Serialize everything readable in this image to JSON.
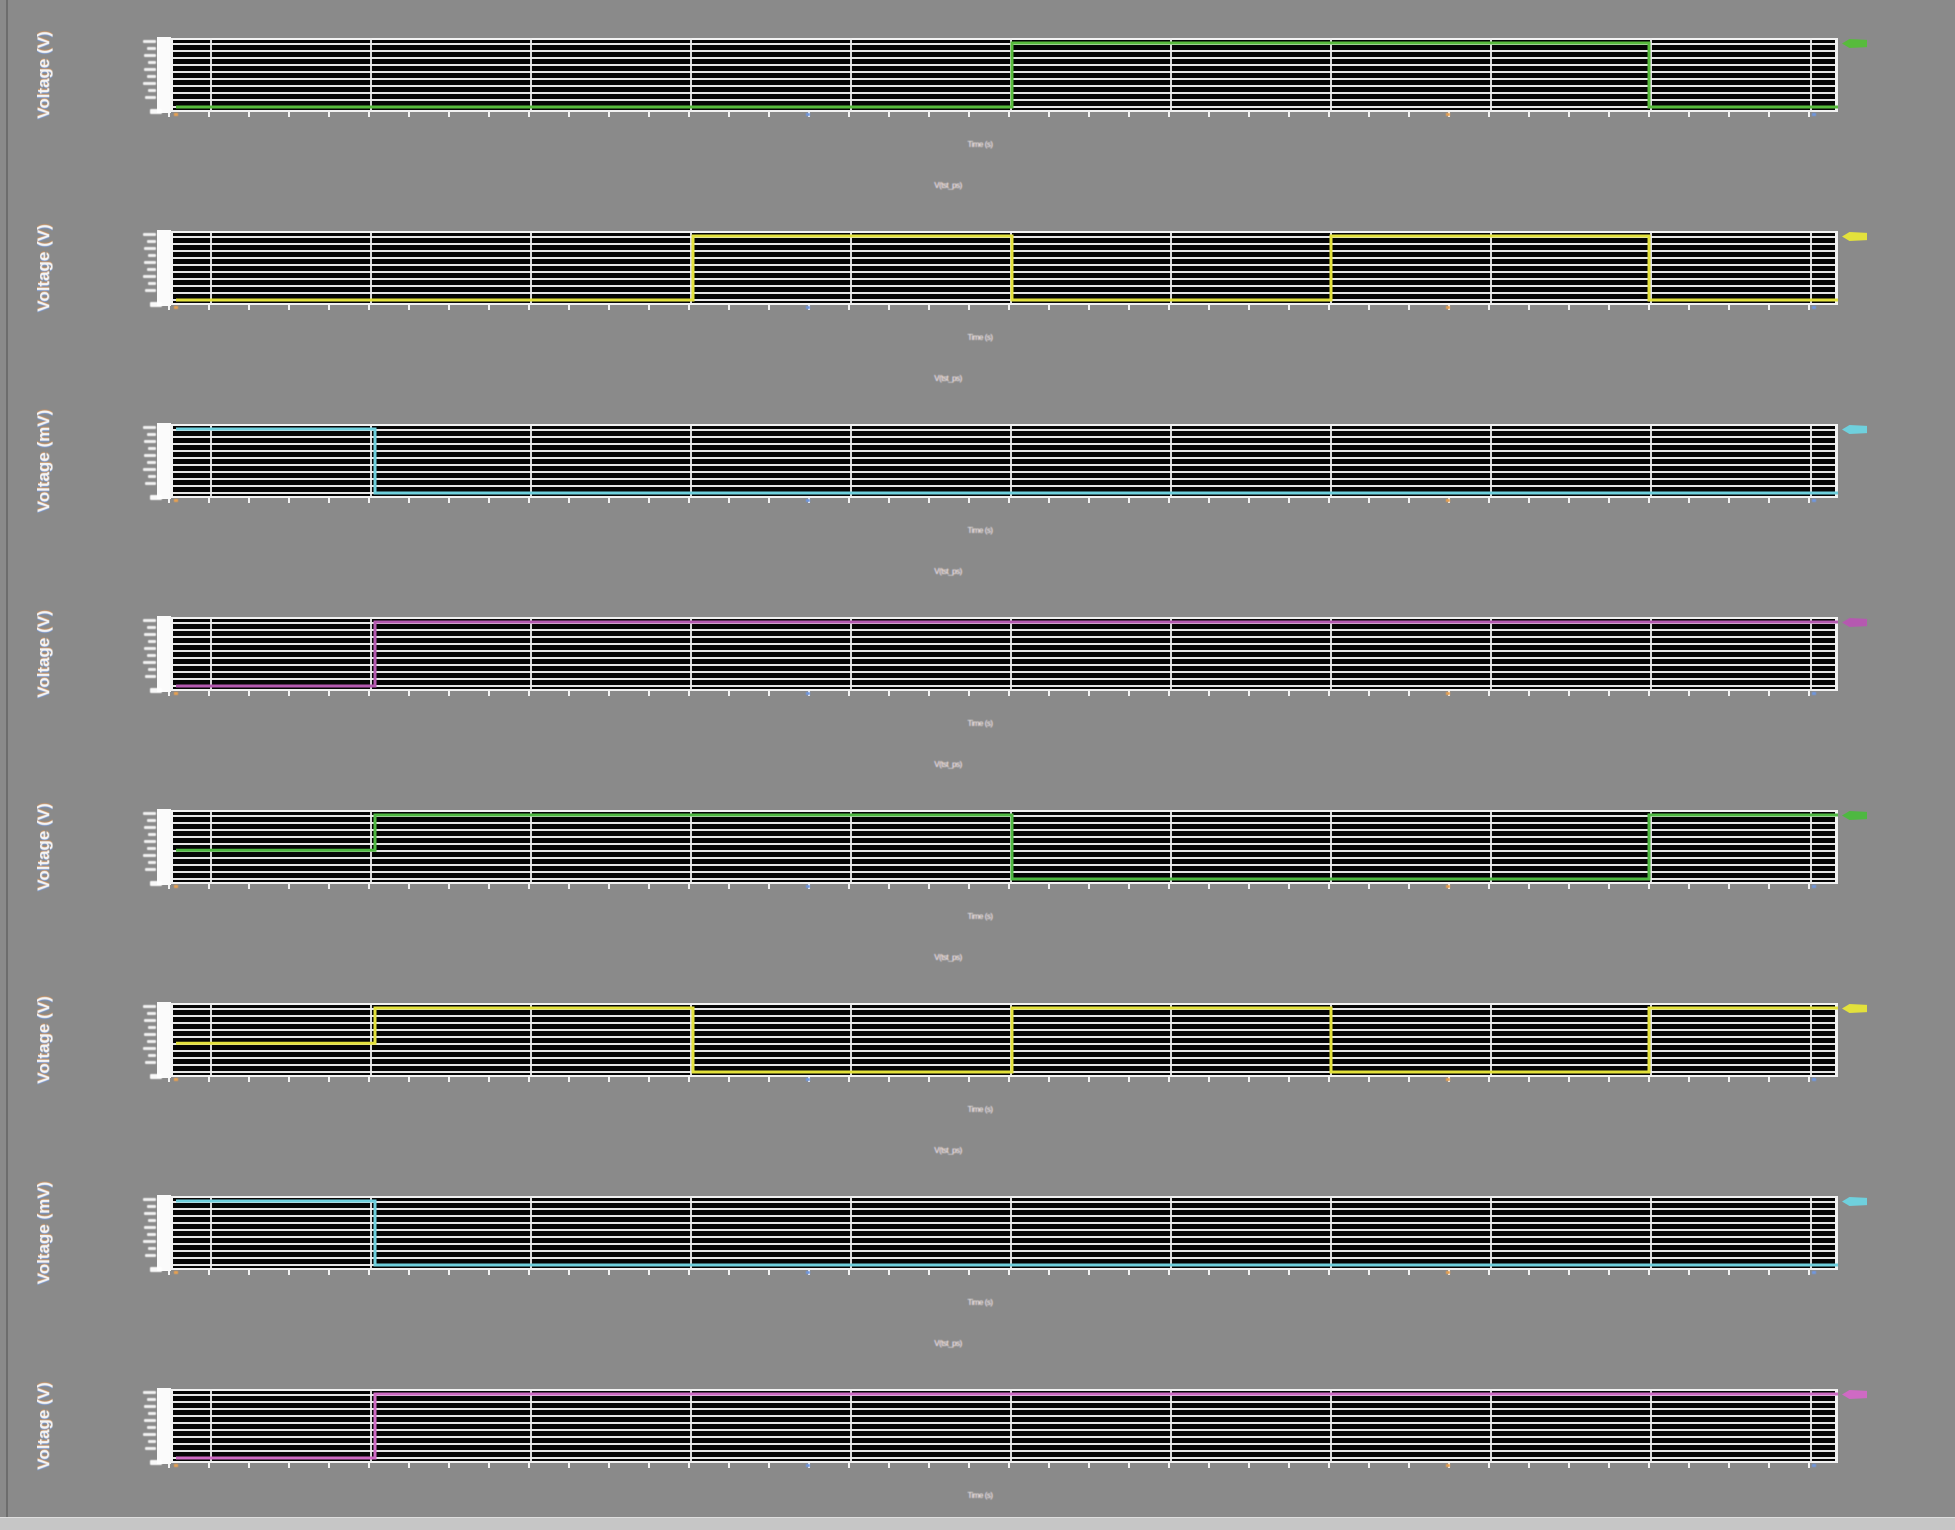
{
  "app": {
    "background_color": "#8a8a8a",
    "plot_background": "#050505",
    "grid_color": "#f2f2f2"
  },
  "x_axis_label": "Time (s)",
  "panel_title": "V(tst_ps)",
  "chart_data": [
    {
      "panel": 1,
      "type": "line",
      "title": "V(tst_ps)",
      "ylabel": "Voltage (V)",
      "xlabel": "Time (s)",
      "color": "#57bb3c",
      "legend_position": "none",
      "grid": true,
      "x_range_fraction": [
        0,
        1
      ],
      "y_levels": {
        "low": 0,
        "high": 1
      },
      "steps": [
        {
          "t": 0,
          "v": 0
        },
        {
          "t": 0.503,
          "v": 1
        },
        {
          "t": 0.886,
          "v": 0
        }
      ]
    },
    {
      "panel": 2,
      "type": "line",
      "title": "V(tst_ps)",
      "ylabel": "Voltage (V)",
      "xlabel": "Time (s)",
      "color": "#e3e13c",
      "legend_position": "none",
      "grid": true,
      "x_range_fraction": [
        0,
        1
      ],
      "y_levels": {
        "low": 0,
        "high": 1
      },
      "steps": [
        {
          "t": 0,
          "v": 0
        },
        {
          "t": 0.311,
          "v": 1
        },
        {
          "t": 0.503,
          "v": 0
        },
        {
          "t": 0.695,
          "v": 1
        },
        {
          "t": 0.886,
          "v": 0
        }
      ]
    },
    {
      "panel": 3,
      "type": "line",
      "title": "V(tst_ps)",
      "ylabel": "Voltage (mV)",
      "xlabel": "Time (s)",
      "color": "#6fd0dd",
      "legend_position": "none",
      "grid": true,
      "x_range_fraction": [
        0,
        1
      ],
      "y_levels": {
        "low": 0,
        "high": 1
      },
      "steps": [
        {
          "t": 0,
          "v": 1
        },
        {
          "t": 0.12,
          "v": 0
        }
      ]
    },
    {
      "panel": 4,
      "type": "line",
      "title": "V(tst_ps)",
      "ylabel": "Voltage (V)",
      "xlabel": "Time (s)",
      "color": "#b559b0",
      "legend_position": "none",
      "grid": true,
      "x_range_fraction": [
        0,
        1
      ],
      "y_levels": {
        "low": 0,
        "high": 1
      },
      "steps": [
        {
          "t": 0,
          "v": 0
        },
        {
          "t": 0.12,
          "v": 1
        }
      ]
    },
    {
      "panel": 5,
      "type": "line",
      "title": "V(tst_ps)",
      "ylabel": "Voltage (V)",
      "xlabel": "Time (s)",
      "color": "#4eb841",
      "legend_position": "none",
      "grid": true,
      "x_range_fraction": [
        0,
        1
      ],
      "y_levels": {
        "low": 0,
        "mid": 0.45,
        "high": 1
      },
      "steps": [
        {
          "t": 0,
          "v": 0.45
        },
        {
          "t": 0.12,
          "v": 1
        },
        {
          "t": 0.503,
          "v": 0
        },
        {
          "t": 0.886,
          "v": 1
        }
      ]
    },
    {
      "panel": 6,
      "type": "line",
      "title": "V(tst_ps)",
      "ylabel": "Voltage (V)",
      "xlabel": "Time (s)",
      "color": "#e3e13c",
      "legend_position": "none",
      "grid": true,
      "x_range_fraction": [
        0,
        1
      ],
      "y_levels": {
        "low": 0,
        "mid": 0.45,
        "high": 1
      },
      "steps": [
        {
          "t": 0,
          "v": 0.45
        },
        {
          "t": 0.12,
          "v": 1
        },
        {
          "t": 0.311,
          "v": 0
        },
        {
          "t": 0.503,
          "v": 1
        },
        {
          "t": 0.695,
          "v": 0
        },
        {
          "t": 0.886,
          "v": 1
        }
      ]
    },
    {
      "panel": 7,
      "type": "line",
      "title": "V(tst_ps)",
      "ylabel": "Voltage (mV)",
      "xlabel": "Time (s)",
      "color": "#6fd0dd",
      "legend_position": "none",
      "grid": true,
      "x_range_fraction": [
        0,
        1
      ],
      "y_levels": {
        "low": 0,
        "high": 1
      },
      "steps": [
        {
          "t": 0,
          "v": 1
        },
        {
          "t": 0.12,
          "v": 0
        }
      ]
    },
    {
      "panel": 8,
      "type": "line",
      "title": "V(tst_ps)",
      "ylabel": "Voltage (V)",
      "xlabel": "Time (s)",
      "color": "#cf6ac4",
      "legend_position": "none",
      "grid": true,
      "x_range_fraction": [
        0,
        1
      ],
      "y_levels": {
        "low": 0,
        "high": 1
      },
      "steps": [
        {
          "t": 0,
          "v": 0
        },
        {
          "t": 0.12,
          "v": 1
        }
      ]
    }
  ]
}
